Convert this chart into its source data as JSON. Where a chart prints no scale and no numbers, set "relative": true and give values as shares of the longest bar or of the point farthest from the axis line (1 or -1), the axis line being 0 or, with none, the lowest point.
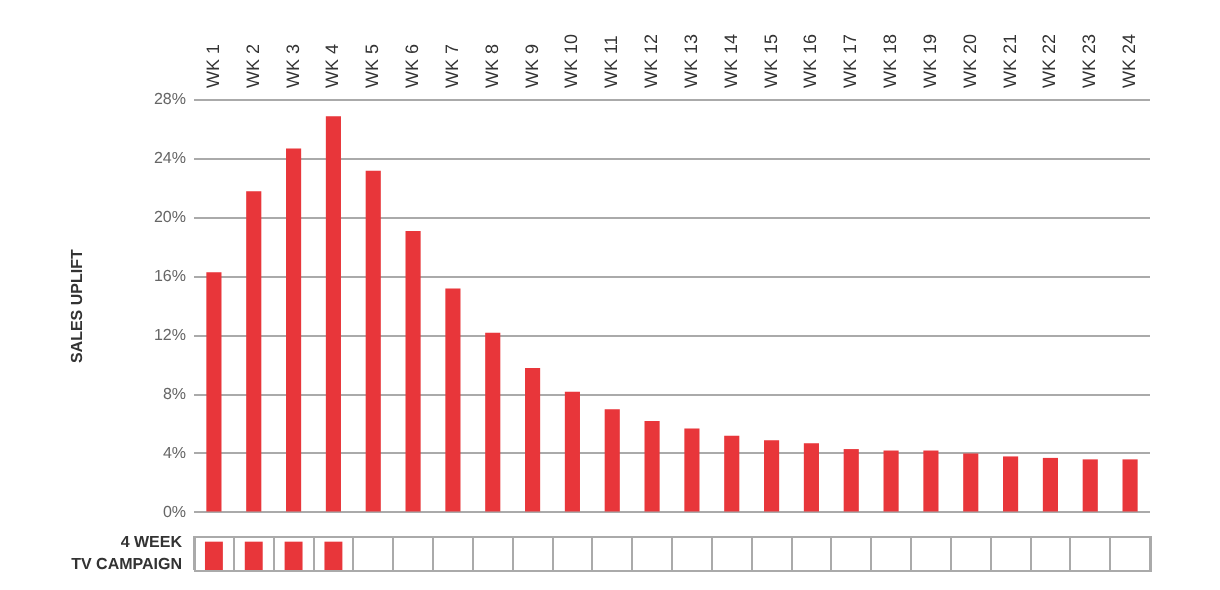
{
  "chart_data": [
    {
      "type": "bar",
      "ylabel": "SALES UPLIFT",
      "categories": [
        "WK 1",
        "WK 2",
        "WK 3",
        "WK 4",
        "WK 5",
        "WK 6",
        "WK 7",
        "WK 8",
        "WK 9",
        "WK 10",
        "WK 11",
        "WK 12",
        "WK 13",
        "WK 14",
        "WK 15",
        "WK 16",
        "WK 17",
        "WK 18",
        "WK 19",
        "WK 20",
        "WK 21",
        "WK 22",
        "WK 23",
        "WK 24"
      ],
      "values": [
        16.3,
        21.8,
        24.7,
        26.9,
        23.2,
        19.1,
        15.2,
        12.2,
        9.8,
        8.2,
        7.0,
        6.2,
        5.7,
        5.2,
        4.9,
        4.7,
        4.3,
        4.2,
        4.2,
        4.0,
        3.8,
        3.7,
        3.6,
        3.6
      ],
      "color": "#e8363a",
      "ylim": [
        0,
        28
      ],
      "yticks": [
        {
          "value": 0,
          "label": "0%"
        },
        {
          "value": 4,
          "label": "4%"
        },
        {
          "value": 8,
          "label": "8%"
        },
        {
          "value": 12,
          "label": "12%"
        },
        {
          "value": 16,
          "label": "16%"
        },
        {
          "value": 20,
          "label": "20%"
        },
        {
          "value": 24,
          "label": "24%"
        },
        {
          "value": 28,
          "label": "28%"
        }
      ],
      "grid": "y"
    },
    {
      "type": "bar",
      "ylabel": "4 WEEK TV CAMPAIGN",
      "relative": true,
      "grid": "x",
      "categories": [
        null,
        null,
        null,
        null,
        null,
        null,
        null,
        null,
        null,
        null,
        null,
        null,
        null,
        null,
        null,
        null,
        null,
        null,
        null,
        null,
        null,
        null,
        null,
        null
      ],
      "values": [
        1,
        1,
        1,
        1,
        0,
        0,
        0,
        0,
        0,
        0,
        0,
        0,
        0,
        0,
        0,
        0,
        0,
        0,
        0,
        0,
        0,
        0,
        0,
        0
      ],
      "color": "#e8363a"
    }
  ]
}
